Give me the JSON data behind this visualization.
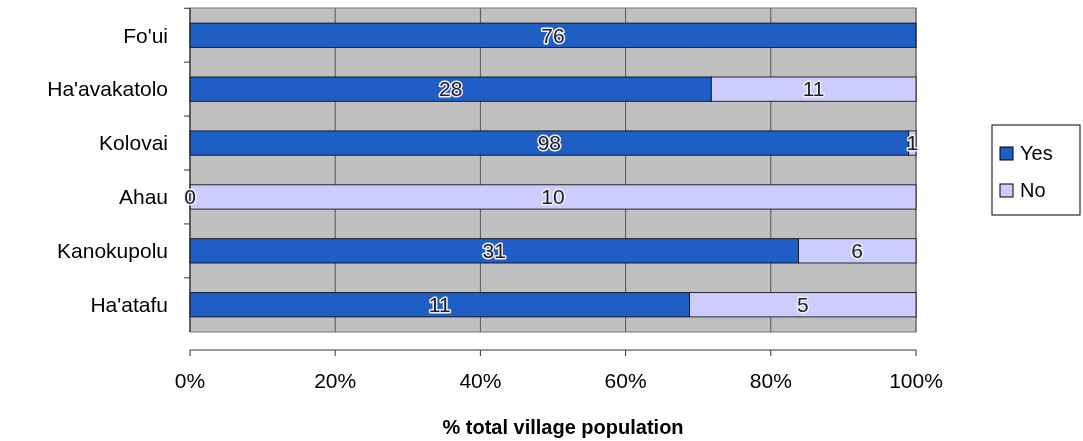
{
  "chart_data": {
    "type": "bar",
    "orientation": "horizontal",
    "stacked": true,
    "xlabel": "% total village population",
    "categories": [
      "Fo'ui",
      "Ha'avakatolo",
      "Kolovai",
      "Ahau",
      "Kanokupolu",
      "Ha'atafu"
    ],
    "series": [
      {
        "name": "Yes",
        "color": "#1f5ec4",
        "values": [
          100,
          71.8,
          99,
          0,
          83.8,
          68.8
        ]
      },
      {
        "name": "No",
        "color": "#ccccff",
        "values": [
          0,
          28.2,
          1,
          100,
          16.2,
          31.2
        ]
      }
    ],
    "annotations": [
      "76",
      "28",
      "11",
      "98",
      "1",
      "0",
      "10",
      "31",
      "6",
      "11",
      "5"
    ],
    "xlim": [
      0,
      100
    ],
    "xticks": [
      {
        "value": 0,
        "label": "0%"
      },
      {
        "value": 20,
        "label": "20%"
      },
      {
        "value": 40,
        "label": "40%"
      },
      {
        "value": 60,
        "label": "60%"
      },
      {
        "value": 80,
        "label": "80%"
      },
      {
        "value": 100,
        "label": "100%"
      }
    ],
    "grid": "x",
    "legend": "right"
  }
}
